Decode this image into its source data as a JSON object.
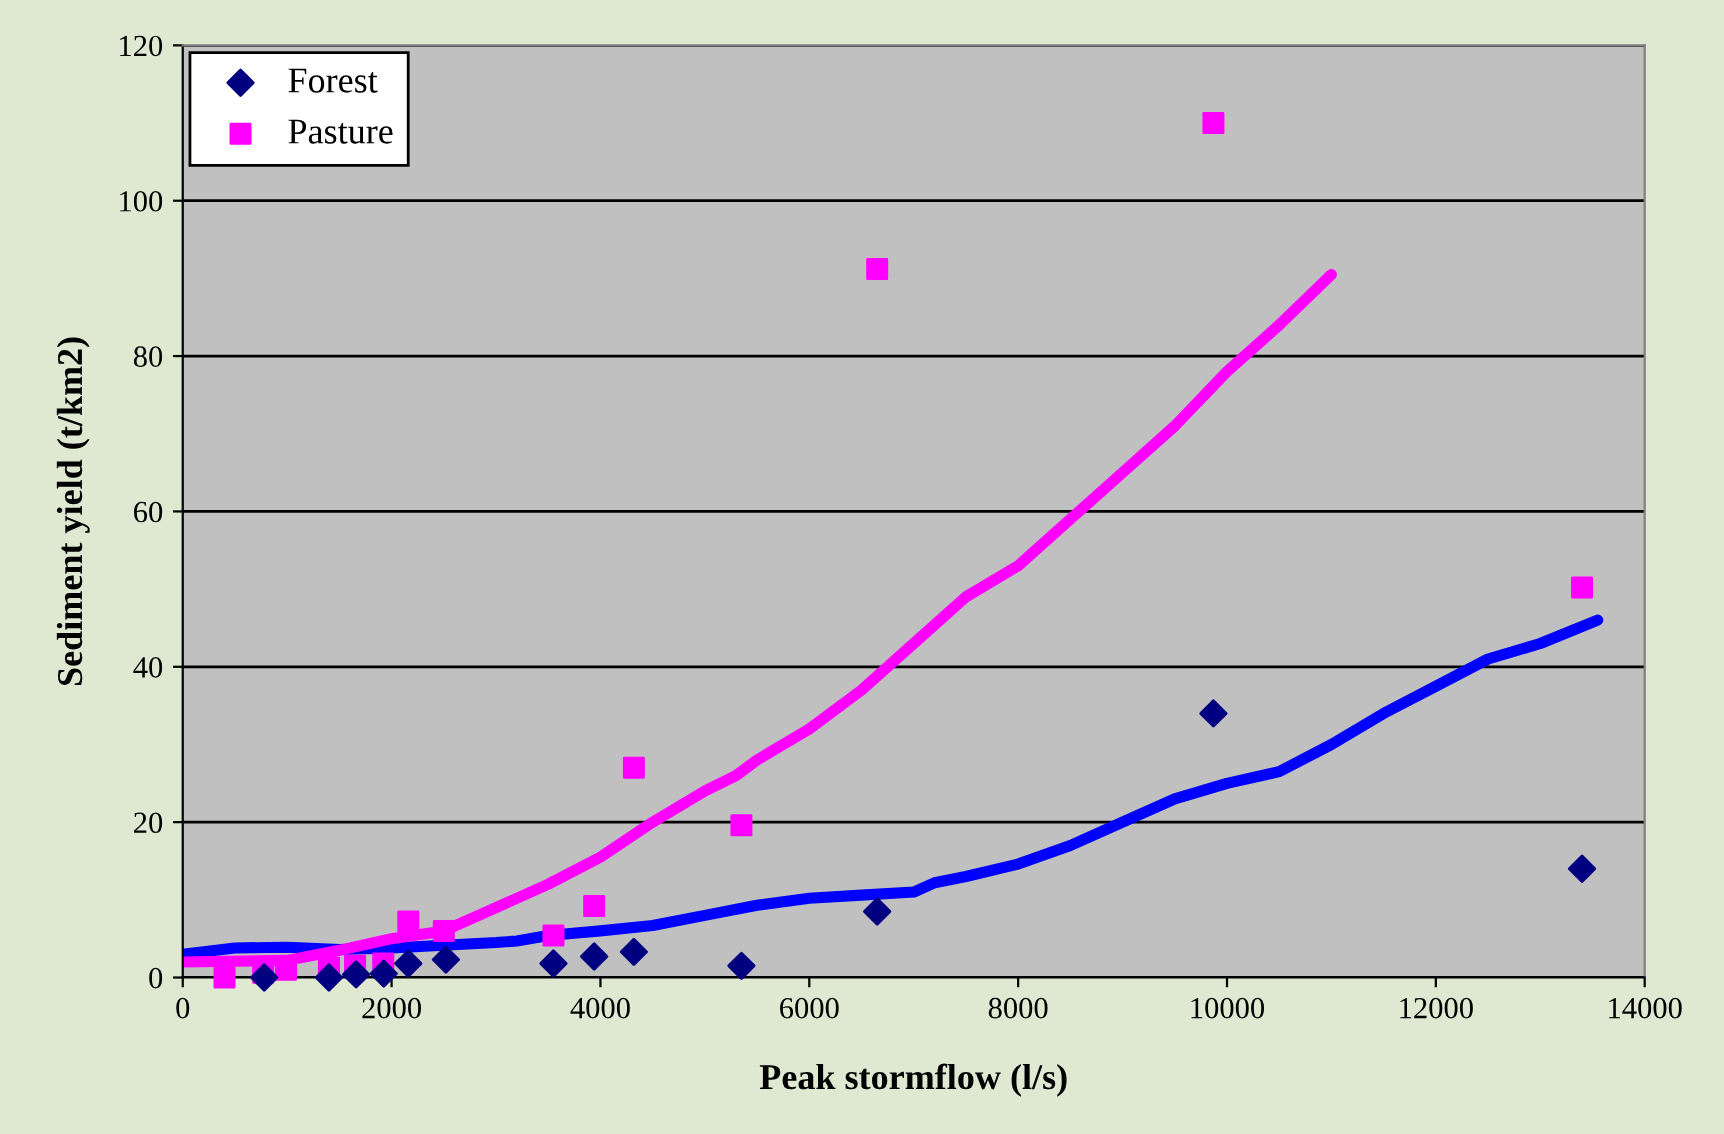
{
  "chart_data": {
    "type": "scatter",
    "xlabel": "Peak stormflow (l/s)",
    "ylabel": "Sediment yield (t/km2)",
    "xlim": [
      0,
      14000
    ],
    "xticks": [
      0,
      2000,
      4000,
      6000,
      8000,
      10000,
      12000,
      14000
    ],
    "ylim": [
      0,
      120
    ],
    "yticks": [
      0,
      20,
      40,
      60,
      80,
      100,
      120
    ],
    "grid": "y",
    "legend": "top left",
    "series": [
      {
        "name": "Forest",
        "color": "#000080",
        "marker": "diamond",
        "x": [
          780,
          1400,
          1660,
          1925,
          2160,
          2520,
          3550,
          3940,
          4320,
          5350,
          6650,
          9870,
          13400
        ],
        "values": [
          0,
          0,
          0.4,
          0.5,
          1.8,
          2.3,
          1.8,
          2.7,
          3.3,
          1.5,
          8.5,
          34,
          14
        ]
      },
      {
        "name": "Pasture",
        "color": "#ff00ff",
        "marker": "square",
        "x": [
          400,
          770,
          990,
          1400,
          1650,
          1920,
          2160,
          2500,
          3550,
          3940,
          4320,
          5350,
          6650,
          9870,
          13400
        ],
        "values": [
          0,
          0.6,
          1,
          1.3,
          1.5,
          1.8,
          7.2,
          6,
          5.4,
          9.2,
          27,
          19.6,
          91.2,
          110,
          50.2
        ]
      },
      {
        "type": "line",
        "color": "#0000ff",
        "x": [
          0,
          500,
          1000,
          1500,
          2000,
          3000,
          3200,
          3500,
          4000,
          4500,
          5000,
          5500,
          6000,
          6500,
          7000,
          7200,
          7500,
          8000,
          8500,
          9000,
          9500,
          10000,
          10500,
          11000,
          11500,
          12000,
          12500,
          13000,
          13550
        ],
        "values": [
          3,
          3.8,
          3.9,
          3.6,
          3.8,
          4.5,
          4.7,
          5.4,
          6,
          6.7,
          8,
          9.3,
          10.2,
          10.6,
          11,
          12.2,
          13,
          14.6,
          17,
          20,
          23,
          25,
          26.5,
          30,
          34,
          37.5,
          41,
          43,
          46
        ]
      },
      {
        "type": "line",
        "color": "#ff00ff",
        "x": [
          0,
          1000,
          1500,
          2000,
          2500,
          3000,
          3500,
          4000,
          4500,
          5000,
          5300,
          5500,
          6000,
          6500,
          7000,
          7500,
          8000,
          8500,
          9000,
          9500,
          10000,
          10500,
          11000
        ],
        "values": [
          2,
          2.2,
          3.5,
          5,
          6,
          9,
          12,
          15.5,
          20,
          24,
          26,
          28,
          32,
          37,
          43,
          49,
          53,
          59,
          65,
          71,
          78,
          84,
          90.5
        ]
      }
    ]
  }
}
